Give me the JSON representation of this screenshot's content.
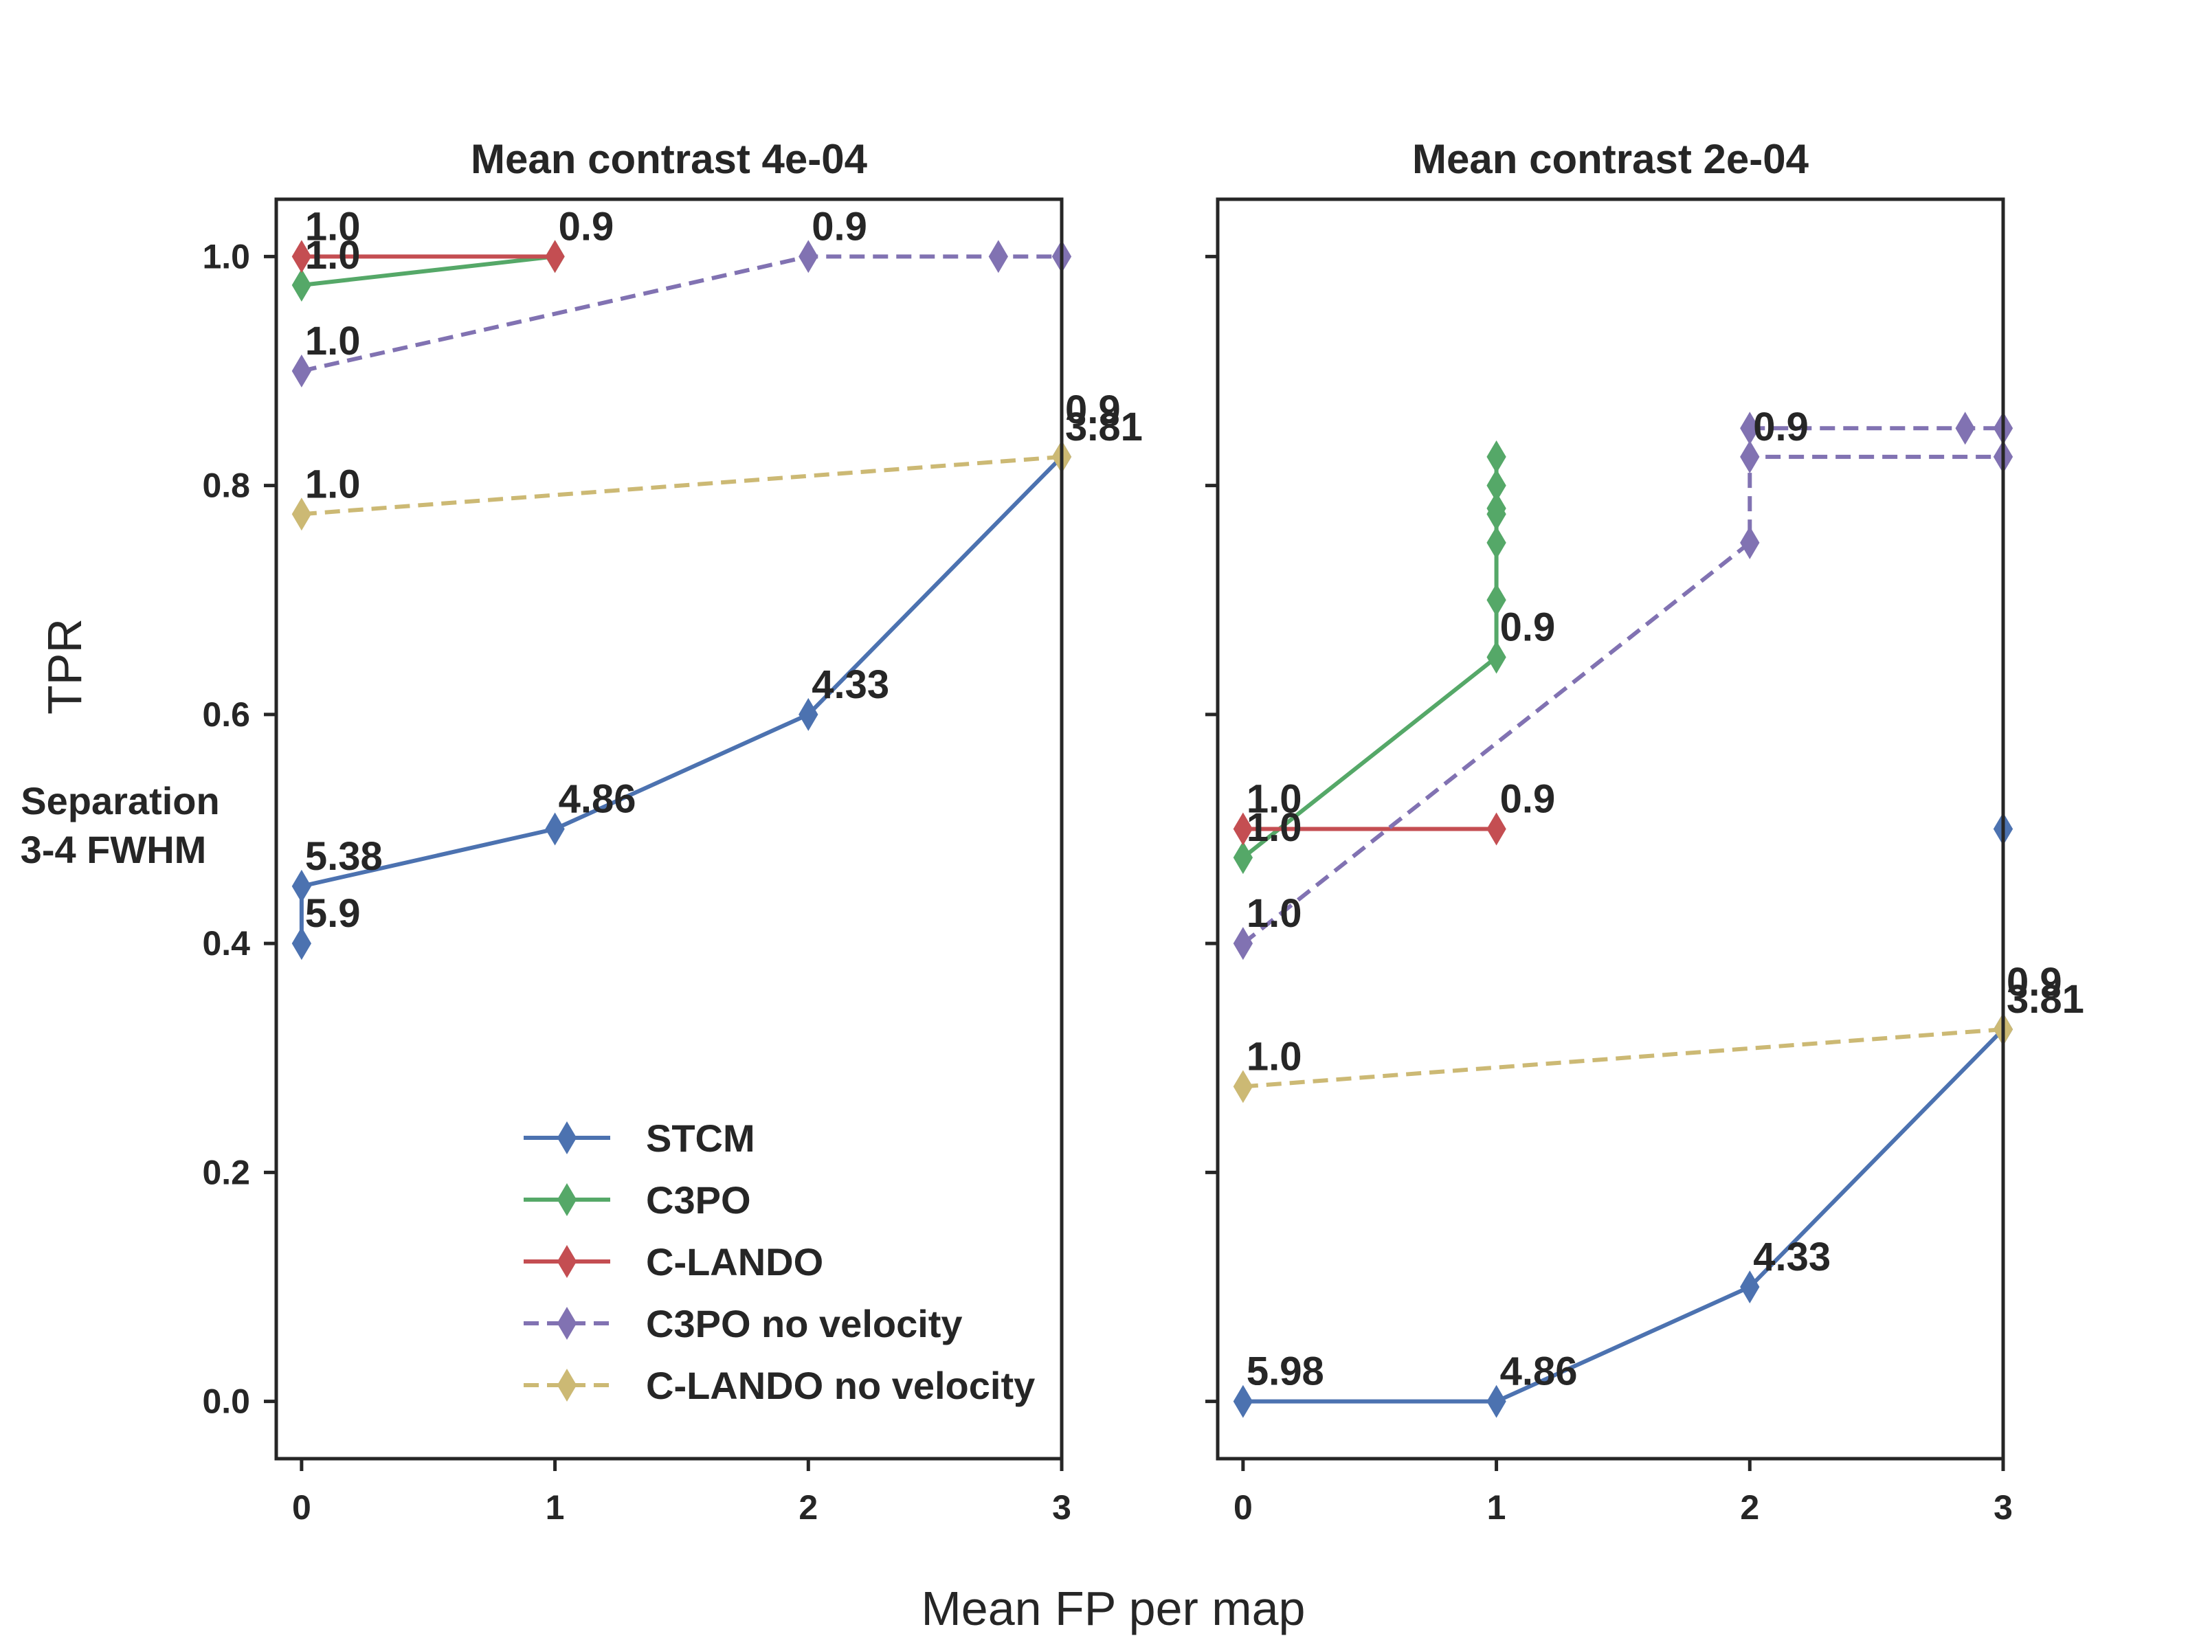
{
  "chart_data": {
    "type": "line",
    "xlabel": "Mean FP per map",
    "ylabel": "TPR",
    "row_label": [
      "Separation",
      "3-4 FWHM"
    ],
    "xlim": [
      -0.1,
      3.0
    ],
    "ylim": [
      -0.05,
      1.05
    ],
    "xticks": [
      0,
      1,
      2,
      3
    ],
    "xtick_labels": [
      "0",
      "1",
      "2",
      "3"
    ],
    "yticks": [
      0.0,
      0.2,
      0.4,
      0.6,
      0.8,
      1.0
    ],
    "ytick_labels": [
      "0.0",
      "0.2",
      "0.4",
      "0.6",
      "0.8",
      "1.0"
    ],
    "grid": false,
    "legend": {
      "placement": "lower-center of first panel",
      "entries": [
        "STCM",
        "C3PO",
        "C-LANDO",
        "C3PO no velocity",
        "C-LANDO no velocity"
      ]
    },
    "series_styles": [
      {
        "name": "STCM",
        "color": "#4c72b0",
        "dash": "solid"
      },
      {
        "name": "C3PO",
        "color": "#55a868",
        "dash": "solid"
      },
      {
        "name": "C-LANDO",
        "color": "#c44e52",
        "dash": "solid"
      },
      {
        "name": "C3PO no velocity",
        "color": "#8172b2",
        "dash": "dashed"
      },
      {
        "name": "C-LANDO no velocity",
        "color": "#ccb974",
        "dash": "dashed"
      }
    ],
    "panels": [
      {
        "title": "Mean contrast 4e-04",
        "series": [
          {
            "name": "STCM",
            "points": [
              [
                0,
                0.4
              ],
              [
                0,
                0.45
              ],
              [
                1,
                0.5
              ],
              [
                2,
                0.6
              ],
              [
                3,
                0.825
              ]
            ]
          },
          {
            "name": "C3PO",
            "points": [
              [
                0,
                0.975
              ],
              [
                1,
                1.0
              ]
            ]
          },
          {
            "name": "C-LANDO",
            "points": [
              [
                0,
                1.0
              ],
              [
                1,
                1.0
              ]
            ]
          },
          {
            "name": "C3PO no velocity",
            "points": [
              [
                0,
                0.9
              ],
              [
                2,
                1.0
              ],
              [
                2.75,
                1.0
              ],
              [
                3,
                1.0
              ]
            ]
          },
          {
            "name": "C-LANDO no velocity",
            "points": [
              [
                0,
                0.775
              ],
              [
                3,
                0.825
              ]
            ]
          }
        ],
        "annotations": [
          {
            "text": "1.0",
            "x": 0,
            "y": 1.0,
            "color": "#c44e52"
          },
          {
            "text": "0.9",
            "x": 1,
            "y": 1.0,
            "color": "#c44e52"
          },
          {
            "text": "1.0",
            "x": 0,
            "y": 0.975,
            "color": "#55a868"
          },
          {
            "text": "1.0",
            "x": 0,
            "y": 0.9,
            "color": "#8172b2"
          },
          {
            "text": "0.9",
            "x": 2,
            "y": 1.0,
            "color": "#8172b2"
          },
          {
            "text": "1.0",
            "x": 0,
            "y": 0.775,
            "color": "#ccb974"
          },
          {
            "text": "0.9",
            "x": 3,
            "y": 0.84,
            "color": "#ccb974"
          },
          {
            "text": "3.81",
            "x": 3,
            "y": 0.825,
            "color": "#4c72b0"
          },
          {
            "text": "4.33",
            "x": 2,
            "y": 0.6,
            "color": "#4c72b0"
          },
          {
            "text": "4.86",
            "x": 1,
            "y": 0.5,
            "color": "#4c72b0"
          },
          {
            "text": "5.38",
            "x": 0,
            "y": 0.45,
            "color": "#4c72b0"
          },
          {
            "text": "5.9",
            "x": 0,
            "y": 0.4,
            "color": "#4c72b0"
          }
        ]
      },
      {
        "title": "Mean contrast 2e-04",
        "series": [
          {
            "name": "STCM",
            "points": [
              [
                0,
                0.0
              ],
              [
                1,
                0.0
              ],
              [
                2,
                0.1
              ],
              [
                3,
                0.325
              ]
            ]
          },
          {
            "name": "STCM (isolated)",
            "points": [
              [
                3,
                0.5
              ]
            ],
            "no_line": true
          },
          {
            "name": "C3PO",
            "points": [
              [
                0,
                0.475
              ],
              [
                1,
                0.65
              ],
              [
                1,
                0.7
              ],
              [
                1,
                0.75
              ],
              [
                1,
                0.775
              ],
              [
                1,
                0.78
              ],
              [
                1,
                0.8
              ],
              [
                1,
                0.825
              ]
            ]
          },
          {
            "name": "C-LANDO",
            "points": [
              [
                0,
                0.5
              ],
              [
                1,
                0.5
              ]
            ]
          },
          {
            "name": "C3PO no velocity",
            "points": [
              [
                0,
                0.4
              ],
              [
                2,
                0.75
              ],
              [
                2,
                0.825
              ],
              [
                3,
                0.825
              ]
            ]
          },
          {
            "name": "C3PO no velocity (upper)",
            "points": [
              [
                2,
                0.85
              ],
              [
                2.85,
                0.85
              ],
              [
                3,
                0.85
              ]
            ]
          },
          {
            "name": "C-LANDO no velocity",
            "points": [
              [
                0,
                0.275
              ],
              [
                3,
                0.325
              ]
            ]
          }
        ],
        "annotations": [
          {
            "text": "1.0",
            "x": 0,
            "y": 0.5,
            "color": "#c44e52"
          },
          {
            "text": "0.9",
            "x": 1,
            "y": 0.5,
            "color": "#c44e52"
          },
          {
            "text": "1.0",
            "x": 0,
            "y": 0.475,
            "color": "#55a868"
          },
          {
            "text": "0.9",
            "x": 1,
            "y": 0.65,
            "color": "#55a868"
          },
          {
            "text": "1.0",
            "x": 0,
            "y": 0.4,
            "color": "#8172b2"
          },
          {
            "text": "0.9",
            "x": 2,
            "y": 0.825,
            "color": "#8172b2"
          },
          {
            "text": "1.0",
            "x": 0,
            "y": 0.275,
            "color": "#ccb974"
          },
          {
            "text": "0.9",
            "x": 3,
            "y": 0.34,
            "color": "#ccb974"
          },
          {
            "text": "3.81",
            "x": 3,
            "y": 0.325,
            "color": "#4c72b0"
          },
          {
            "text": "4.33",
            "x": 2,
            "y": 0.1,
            "color": "#4c72b0"
          },
          {
            "text": "4.86",
            "x": 1,
            "y": 0.0,
            "color": "#4c72b0"
          },
          {
            "text": "5.98",
            "x": 0,
            "y": 0.0,
            "color": "#4c72b0"
          },
          {
            "text": "5.9",
            "x": 0,
            "y": 0.0,
            "color": "#4c72b0"
          }
        ]
      }
    ]
  }
}
